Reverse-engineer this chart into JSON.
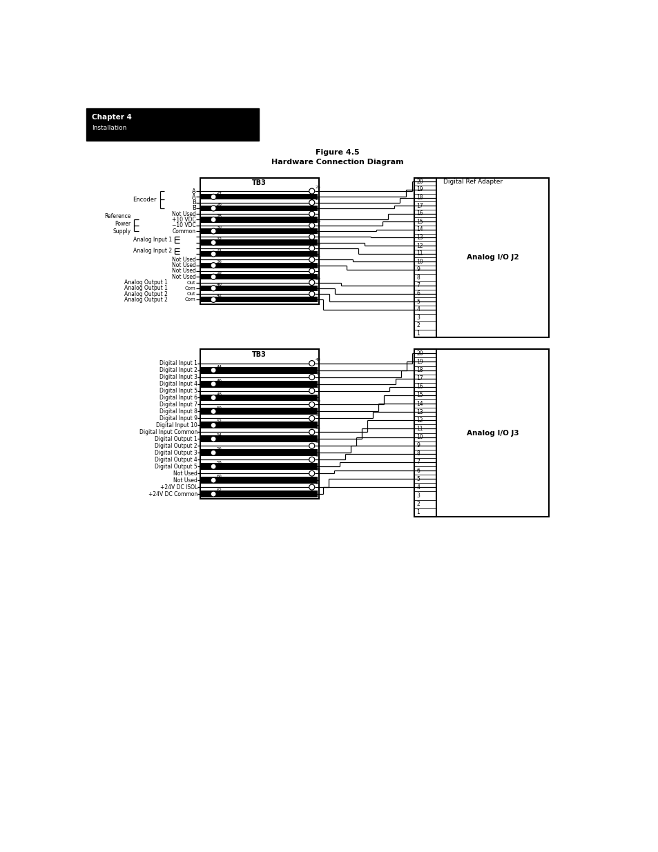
{
  "title_line1": "Figure 4.5",
  "title_line2": "Hardware Connection Diagram",
  "chapter_title": "Chapter 4",
  "chapter_sub": "Installation",
  "bg_color": "#ffffff",
  "fig_width": 9.54,
  "fig_height": 12.35,
  "top_conn": [
    [
      23,
      "R",
      20,
      true
    ],
    [
      24,
      "L",
      19,
      true
    ],
    [
      25,
      "R",
      18,
      true
    ],
    [
      26,
      "L",
      17,
      true
    ],
    [
      27,
      "R",
      17,
      false
    ],
    [
      28,
      "L",
      16,
      true
    ],
    [
      29,
      "R",
      15,
      true
    ],
    [
      30,
      "L",
      14,
      true
    ],
    [
      31,
      "R",
      13,
      true
    ],
    [
      32,
      "L",
      12,
      true
    ],
    [
      33,
      "R",
      11,
      true
    ],
    [
      34,
      "L",
      11,
      false
    ],
    [
      35,
      "R",
      10,
      true
    ],
    [
      36,
      "L",
      9,
      true
    ],
    [
      37,
      "R",
      8,
      false
    ],
    [
      38,
      "L",
      7,
      false
    ],
    [
      39,
      "R",
      7,
      true
    ],
    [
      40,
      "L",
      6,
      true
    ],
    [
      41,
      "R",
      5,
      true
    ],
    [
      42,
      "L",
      4,
      true
    ]
  ],
  "bot_conn": [
    [
      43,
      "R",
      20,
      true
    ],
    [
      44,
      "L",
      19,
      true
    ],
    [
      45,
      "R",
      18,
      true
    ],
    [
      46,
      "L",
      17,
      true
    ],
    [
      47,
      "R",
      16,
      true
    ],
    [
      48,
      "L",
      16,
      false
    ],
    [
      49,
      "R",
      15,
      true
    ],
    [
      50,
      "L",
      14,
      true
    ],
    [
      51,
      "R",
      13,
      true
    ],
    [
      52,
      "L",
      13,
      false
    ],
    [
      53,
      "R",
      12,
      true
    ],
    [
      54,
      "L",
      11,
      true
    ],
    [
      55,
      "R",
      10,
      true
    ],
    [
      56,
      "L",
      9,
      true
    ],
    [
      57,
      "R",
      8,
      true
    ],
    [
      58,
      "L",
      7,
      true
    ],
    [
      59,
      "R",
      6,
      true
    ],
    [
      60,
      "L",
      6,
      false
    ],
    [
      61,
      "R",
      5,
      true
    ],
    [
      62,
      "L",
      4,
      true
    ]
  ],
  "top_left_labels": [
    [
      0,
      "A",
      "",
      false
    ],
    [
      1,
      "Ā",
      "",
      false
    ],
    [
      2,
      "B",
      "",
      false
    ],
    [
      3,
      "B̅",
      "",
      false
    ],
    [
      4,
      "",
      "Not Used",
      false
    ],
    [
      5,
      "+10 VDC",
      "",
      false
    ],
    [
      6,
      "−10 VDC",
      "",
      false
    ],
    [
      7,
      "Common",
      "",
      false
    ],
    [
      8,
      "",
      "",
      true
    ],
    [
      9,
      "",
      "",
      true
    ],
    [
      10,
      "",
      "",
      true
    ],
    [
      11,
      "",
      "",
      true
    ],
    [
      12,
      "",
      "Not Used",
      false
    ],
    [
      13,
      "",
      "Not Used",
      false
    ],
    [
      14,
      "",
      "Not Used",
      false
    ],
    [
      15,
      "",
      "Not Used",
      false
    ],
    [
      16,
      "Out",
      "Analog Output 1",
      false
    ],
    [
      17,
      "Com",
      "Analog Output 1",
      false
    ],
    [
      18,
      "Out",
      "Analog Output 2",
      false
    ],
    [
      19,
      "Com",
      "Analog Output 2",
      false
    ]
  ],
  "bot_left_labels": [
    "Digital Input 1",
    "Digital Input 2",
    "Digital Input 3",
    "Digital Input 4",
    "Digital Input 5",
    "Digital Input 6",
    "Digital Input 7",
    "Digital Input 8",
    "Digital Input 9",
    "Digital Input 10",
    "Digital Input Common",
    "Digital Output 1",
    "Digital Output 2",
    "Digital Output 3",
    "Digital Output 4",
    "Digital Output 5",
    "Not Used",
    "Not Used",
    "+24V DC ISOL",
    "+24V DC Common"
  ]
}
